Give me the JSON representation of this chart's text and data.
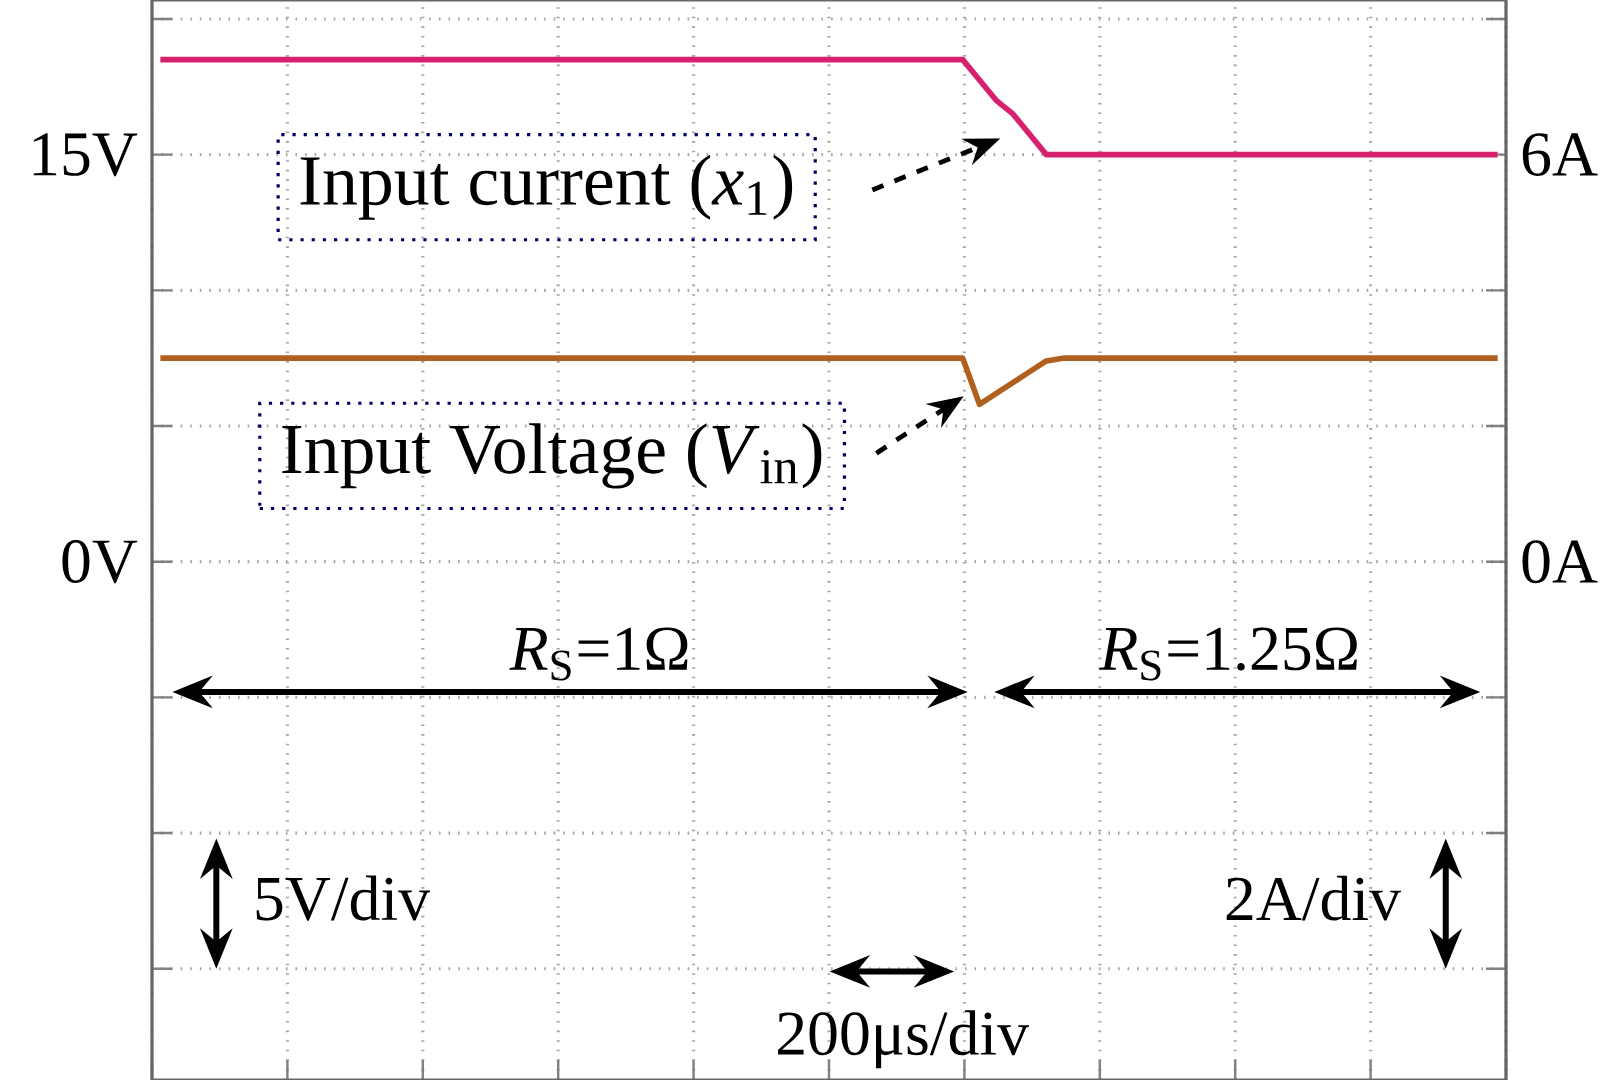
{
  "chart_data": {
    "type": "line",
    "categories": [
      null,
      null,
      null,
      null,
      null,
      null,
      null,
      null,
      null,
      null,
      null,
      null,
      null,
      null,
      null,
      null,
      null,
      null,
      null,
      null,
      null,
      null,
      null,
      null,
      null,
      null,
      null,
      null,
      null,
      null,
      null,
      null,
      null,
      null,
      null,
      null,
      null,
      null,
      null,
      null,
      null,
      null,
      null,
      null,
      null,
      null,
      null,
      null,
      null,
      null,
      null,
      null,
      null,
      null,
      null,
      null,
      null,
      null,
      null,
      null,
      null,
      null,
      null,
      null,
      null,
      null,
      null,
      null,
      null,
      null,
      null,
      null,
      null,
      null,
      null,
      null,
      null,
      null,
      null,
      null,
      null
    ],
    "series": [
      {
        "color": "#d6226e",
        "axis": "y2",
        "values": [
          7.4,
          7.4,
          7.4,
          7.4,
          7.4,
          7.4,
          7.4,
          7.4,
          7.4,
          7.4,
          7.4,
          7.4,
          7.4,
          7.4,
          7.4,
          7.4,
          7.4,
          7.4,
          7.4,
          7.4,
          7.4,
          7.4,
          7.4,
          7.4,
          7.4,
          7.4,
          7.4,
          7.4,
          7.4,
          7.4,
          7.4,
          7.4,
          7.4,
          7.4,
          7.4,
          7.4,
          7.4,
          7.4,
          7.4,
          7.4,
          7.4,
          7.4,
          7.4,
          7.4,
          7.4,
          7.4,
          7.4,
          7.4,
          7.4,
          7.1,
          6.8,
          6.6,
          6.3,
          6.0,
          6.0,
          6.0,
          6.0,
          6.0,
          6.0,
          6.0,
          6.0,
          6.0,
          6.0,
          6.0,
          6.0,
          6.0,
          6.0,
          6.0,
          6.0,
          6.0,
          6.0,
          6.0,
          6.0,
          6.0,
          6.0,
          6.0,
          6.0,
          6.0,
          6.0,
          6.0,
          6.0
        ]
      },
      {
        "color": "#b0601e",
        "values": [
          7.5,
          7.5,
          7.5,
          7.5,
          7.5,
          7.5,
          7.5,
          7.5,
          7.5,
          7.5,
          7.5,
          7.5,
          7.5,
          7.5,
          7.5,
          7.5,
          7.5,
          7.5,
          7.5,
          7.5,
          7.5,
          7.5,
          7.5,
          7.5,
          7.5,
          7.5,
          7.5,
          7.5,
          7.5,
          7.5,
          7.5,
          7.5,
          7.5,
          7.5,
          7.5,
          7.5,
          7.5,
          7.5,
          7.5,
          7.5,
          7.5,
          7.5,
          7.5,
          7.5,
          7.5,
          7.5,
          7.5,
          7.5,
          7.5,
          5.8,
          6.2,
          6.6,
          7.0,
          7.4,
          7.5,
          7.5,
          7.5,
          7.5,
          7.5,
          7.5,
          7.5,
          7.5,
          7.5,
          7.5,
          7.5,
          7.5,
          7.5,
          7.5,
          7.5,
          7.5,
          7.5,
          7.5,
          7.5,
          7.5,
          7.5,
          7.5,
          7.5,
          7.5,
          7.5,
          7.5,
          7.5
        ]
      }
    ],
    "ylim": [
      -19.1,
      20.7
    ],
    "yticks": [
      {
        "value": -15,
        "label": null
      },
      {
        "value": -10,
        "label": null
      },
      {
        "value": -5,
        "label": null
      },
      {
        "value": 0,
        "label": "0V"
      },
      {
        "value": 5,
        "label": null
      },
      {
        "value": 10,
        "label": null
      },
      {
        "value": 15,
        "label": "15V"
      },
      {
        "value": 20,
        "label": null
      }
    ],
    "y2lim": [
      -7.64,
      8.28
    ],
    "y2ticks": [
      {
        "value": -6,
        "label": null
      },
      {
        "value": -4,
        "label": null
      },
      {
        "value": -2,
        "label": null
      },
      {
        "value": 0,
        "label": "0A"
      },
      {
        "value": 2,
        "label": null
      },
      {
        "value": 4,
        "label": null
      },
      {
        "value": 6,
        "label": "6A"
      },
      {
        "value": 8,
        "label": null
      }
    ],
    "grid": true,
    "line_style": "solid",
    "annotations": [
      "Input current (*x*$_{1}$)",
      "Input Voltage (*V*$_{in}$)",
      "*R*$_{S}$=1Ω",
      "*R*$_{S}$=1.25Ω",
      "5V/div",
      "2A/div",
      "200μs/div"
    ]
  }
}
